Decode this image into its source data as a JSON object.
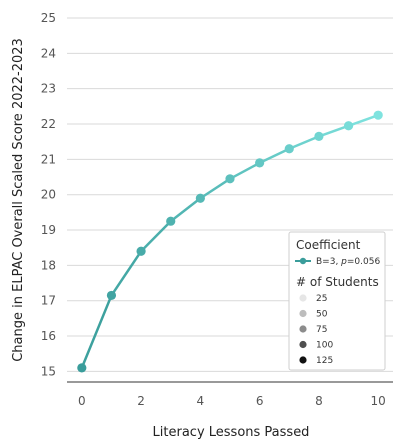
{
  "chart_data": {
    "type": "line",
    "xlabel": "Literacy Lessons Passed",
    "ylabel": "Change in ELPAC Overall Scaled Score 2022-2023",
    "xlim": [
      -0.5,
      10.5
    ],
    "ylim": [
      14.7,
      25
    ],
    "xticks": [
      0,
      2,
      4,
      6,
      8,
      10
    ],
    "yticks": [
      15,
      16,
      17,
      18,
      19,
      20,
      21,
      22,
      23,
      24,
      25
    ],
    "grid": "horizontal",
    "x": [
      0,
      1,
      2,
      3,
      4,
      5,
      6,
      7,
      8,
      9,
      10
    ],
    "series": [
      {
        "name": "B=3, p=0.056",
        "values": [
          15.1,
          17.15,
          18.4,
          19.25,
          19.9,
          20.45,
          20.9,
          21.3,
          21.65,
          21.95,
          22.25
        ],
        "color_start": "#3a9d9b",
        "color_end": "#7fe3df"
      }
    ],
    "legend": {
      "position": "bottom-right",
      "title": "Coefficient",
      "coef_prefix": "B=3, ",
      "coef_p": "p",
      "coef_suffix": "=0.056",
      "size_title": "# of Students",
      "sizes": [
        {
          "label": "25",
          "color": "#e6e6e6"
        },
        {
          "label": "50",
          "color": "#bdbdbd"
        },
        {
          "label": "75",
          "color": "#8c8c8c"
        },
        {
          "label": "100",
          "color": "#4f4f4f"
        },
        {
          "label": "125",
          "color": "#111111"
        }
      ]
    }
  }
}
